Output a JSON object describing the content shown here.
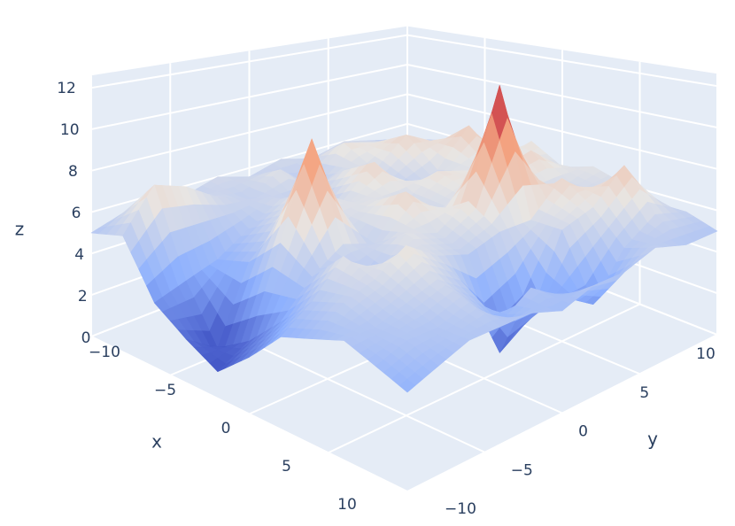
{
  "chart_data": {
    "type": "surface",
    "x": [
      -10,
      -8,
      -6,
      -4,
      -2,
      0,
      2,
      4,
      6,
      8,
      10
    ],
    "y": [
      -10,
      -8,
      -6,
      -4,
      -2,
      0,
      2,
      4,
      6,
      8,
      10
    ],
    "z": [
      [
        5,
        5.5,
        3,
        2,
        1.2,
        2.5,
        4,
        4.5,
        5,
        4.5,
        4
      ],
      [
        5.5,
        7.5,
        3.5,
        1,
        2,
        3.5,
        5,
        5.5,
        5,
        5,
        4.5
      ],
      [
        6,
        7,
        4,
        4.5,
        6,
        5,
        6.5,
        6,
        5.5,
        5,
        5
      ],
      [
        5.5,
        6,
        5,
        6,
        10.5,
        6,
        5,
        7,
        6,
        5.5,
        5
      ],
      [
        6,
        5.5,
        6,
        7,
        6,
        5.5,
        6.5,
        6,
        5,
        4,
        5
      ],
      [
        5.5,
        6.5,
        5,
        6,
        6.5,
        7.5,
        6,
        5.5,
        1.5,
        5,
        4.5
      ],
      [
        6,
        5,
        6.5,
        7.5,
        6,
        6,
        7,
        6,
        2.5,
        4,
        5
      ],
      [
        5.5,
        7,
        6,
        5.5,
        7,
        6.5,
        12.3,
        6,
        6,
        3,
        5
      ],
      [
        6,
        6.5,
        7.5,
        6,
        6.5,
        7,
        6,
        7.5,
        6.5,
        5,
        5.5
      ],
      [
        5.5,
        6,
        6.5,
        8,
        6,
        7.5,
        6,
        6,
        8,
        6,
        5
      ],
      [
        5,
        5.5,
        6,
        5.5,
        7,
        6,
        6.5,
        6,
        5.5,
        5.5,
        5
      ]
    ],
    "xlim": [
      -10,
      10
    ],
    "ylim": [
      -10,
      10
    ],
    "zlim": [
      0,
      12.6
    ],
    "xticks": [
      {
        "value": -10,
        "label": "−10"
      },
      {
        "value": -5,
        "label": "−5"
      },
      0,
      5,
      10
    ],
    "yticks": [
      {
        "value": -10,
        "label": "−10"
      },
      {
        "value": -5,
        "label": "−5"
      },
      0,
      5,
      10
    ],
    "zticks": [
      0,
      2,
      4,
      6,
      8,
      10,
      12
    ],
    "xaxis_title": "x",
    "yaxis_title": "y",
    "zaxis_title": "z",
    "colorscale": [
      [
        0,
        "#3a4cc0"
      ],
      [
        0.25,
        "#8db0fe"
      ],
      [
        0.5,
        "#e8e6e4"
      ],
      [
        0.75,
        "#f4a582"
      ],
      [
        1,
        "#b40426"
      ]
    ],
    "background": "#e5ecf6",
    "grid": true
  }
}
